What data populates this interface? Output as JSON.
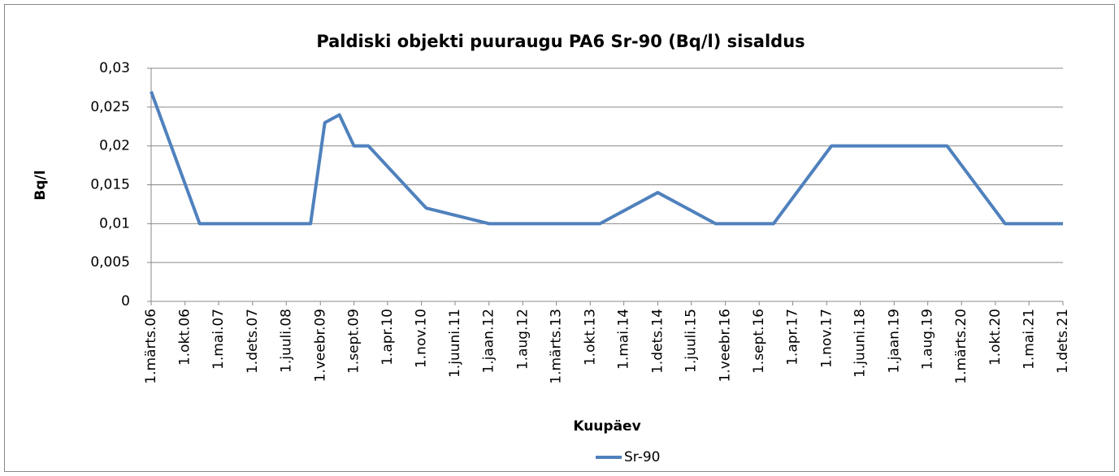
{
  "chart_data": {
    "type": "line",
    "title": "Paldiski objekti puuraugu PA6 Sr-90 (Bq/l) sisaldus",
    "x_label": "Kuupäev",
    "y_label": "Bq/l",
    "x": [
      "2006-03-01",
      "2007-01-01",
      "2008-12-01",
      "2009-03-01",
      "2009-06-01",
      "2009-09-01",
      "2009-12-01",
      "2010-12-01",
      "2012-01-01",
      "2013-12-01",
      "2014-12-01",
      "2015-12-01",
      "2016-12-01",
      "2017-12-01",
      "2019-12-01",
      "2020-12-01",
      "2021-12-01"
    ],
    "series": [
      {
        "name": "Sr-90",
        "color": "#4f81bd",
        "values": [
          0.027,
          0.01,
          0.01,
          0.023,
          0.024,
          0.02,
          0.02,
          0.012,
          0.01,
          0.01,
          0.014,
          0.01,
          0.01,
          0.02,
          0.02,
          0.01,
          0.01
        ]
      }
    ],
    "xlim": [
      "2006-03-01",
      "2021-12-01"
    ],
    "xticks": [
      {
        "value": "2006-03-01",
        "label": "1.märts.06"
      },
      {
        "value": "2006-10-01",
        "label": "1.okt.06"
      },
      {
        "value": "2007-05-01",
        "label": "1.mai.07"
      },
      {
        "value": "2007-12-01",
        "label": "1.dets.07"
      },
      {
        "value": "2008-07-01",
        "label": "1.juuli.08"
      },
      {
        "value": "2009-02-01",
        "label": "1.veebr.09"
      },
      {
        "value": "2009-09-01",
        "label": "1.sept.09"
      },
      {
        "value": "2010-04-01",
        "label": "1.apr.10"
      },
      {
        "value": "2010-11-01",
        "label": "1.nov.10"
      },
      {
        "value": "2011-06-01",
        "label": "1.juuni.11"
      },
      {
        "value": "2012-01-01",
        "label": "1.jaan.12"
      },
      {
        "value": "2012-08-01",
        "label": "1.aug.12"
      },
      {
        "value": "2013-03-01",
        "label": "1.märts.13"
      },
      {
        "value": "2013-10-01",
        "label": "1.okt.13"
      },
      {
        "value": "2014-05-01",
        "label": "1.mai.14"
      },
      {
        "value": "2014-12-01",
        "label": "1.dets.14"
      },
      {
        "value": "2015-07-01",
        "label": "1.juuli.15"
      },
      {
        "value": "2016-02-01",
        "label": "1.veebr.16"
      },
      {
        "value": "2016-09-01",
        "label": "1.sept.16"
      },
      {
        "value": "2017-04-01",
        "label": "1.apr.17"
      },
      {
        "value": "2017-11-01",
        "label": "1.nov.17"
      },
      {
        "value": "2018-06-01",
        "label": "1.juuni.18"
      },
      {
        "value": "2019-01-01",
        "label": "1.jaan.19"
      },
      {
        "value": "2019-08-01",
        "label": "1.aug.19"
      },
      {
        "value": "2020-03-01",
        "label": "1.märts.20"
      },
      {
        "value": "2020-10-01",
        "label": "1.okt.20"
      },
      {
        "value": "2021-05-01",
        "label": "1.mai.21"
      },
      {
        "value": "2021-12-01",
        "label": "1.dets.21"
      }
    ],
    "ylim": [
      0,
      0.03
    ],
    "yticks": [
      0,
      {
        "value": 0.005,
        "label": "0,005"
      },
      {
        "value": 0.01,
        "label": "0,01"
      },
      {
        "value": 0.015,
        "label": "0,015"
      },
      {
        "value": 0.02,
        "label": "0,02"
      },
      {
        "value": 0.025,
        "label": "0,025"
      },
      {
        "value": 0.03,
        "label": "0,03"
      }
    ],
    "grid": true,
    "legend": "bottom"
  }
}
